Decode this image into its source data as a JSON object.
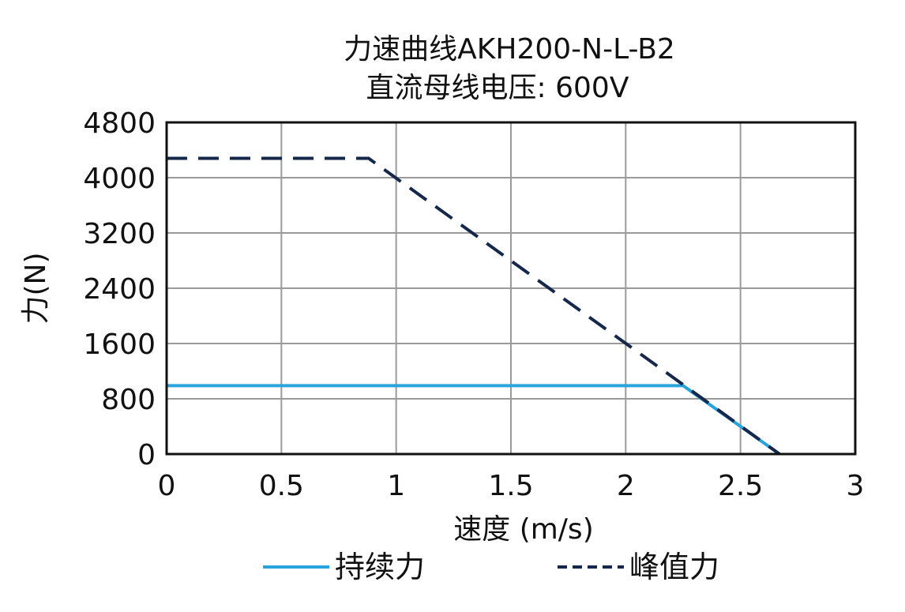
{
  "chart_data": {
    "type": "line",
    "title": "力速曲线AKH200-N-L-B2",
    "subtitle": "直流母线电压: 600V",
    "xlabel": "速度 (m/s)",
    "ylabel": "力(N)",
    "xlim": [
      0,
      3
    ],
    "ylim": [
      0,
      4800
    ],
    "xticks": [
      "0",
      "0.5",
      "1",
      "1.5",
      "2",
      "2.5",
      "3"
    ],
    "yticks": [
      "0",
      "800",
      "1600",
      "2400",
      "3200",
      "4000",
      "4800"
    ],
    "grid": true,
    "legend_position": "bottom",
    "series": [
      {
        "name": "持续力",
        "color": "#29a3dc",
        "style": "solid",
        "x": [
          0,
          2.25,
          2.67
        ],
        "y": [
          990,
          990,
          0
        ]
      },
      {
        "name": "峰值力",
        "color": "#15284b",
        "style": "dashed",
        "x": [
          0,
          0.88,
          2.67
        ],
        "y": [
          4280,
          4280,
          0
        ]
      }
    ]
  }
}
